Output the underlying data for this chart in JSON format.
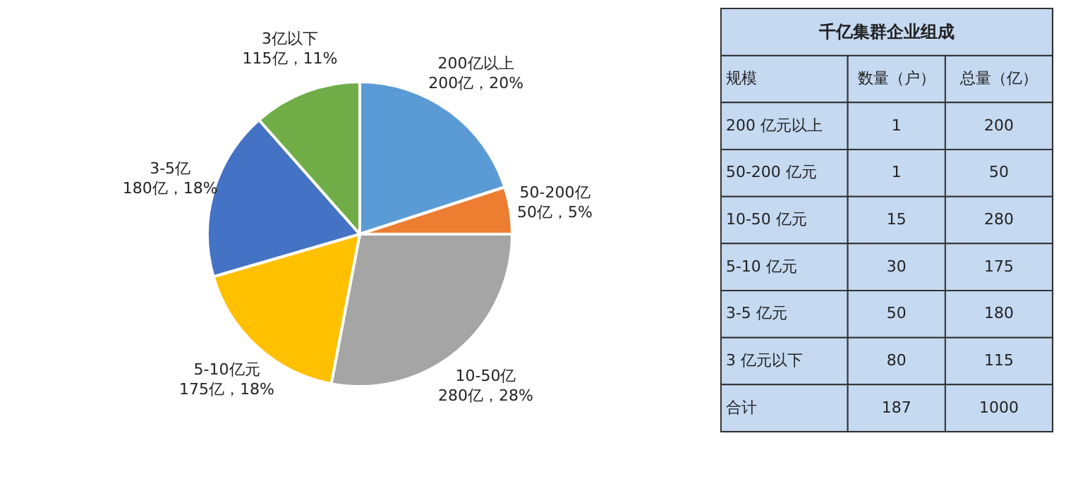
{
  "chart_data": [
    {
      "type": "pie",
      "categories": [
        "200亿以上",
        "50-200亿",
        "10-50亿",
        "5-10亿元",
        "3-5亿",
        "3亿以下"
      ],
      "value_labels": [
        "200亿，20%",
        "50亿，5%",
        "280亿，28%",
        "175亿，18%",
        "180亿，18%",
        "115亿，11%"
      ],
      "values": [
        200,
        50,
        280,
        175,
        180,
        115
      ],
      "colors": [
        "#5b9bd5",
        "#ed7d31",
        "#a5a5a5",
        "#ffc000",
        "#4472c4",
        "#70ad47"
      ],
      "data_labels": true,
      "legend": false
    },
    {
      "type": "other",
      "title": "千亿集群企业组成",
      "annotations": [
        "规模",
        "数量（户）",
        "总量（亿）",
        "200 亿元以上",
        "1",
        "200",
        "50-200 亿元",
        "1",
        "50",
        "10-50 亿元",
        "15",
        "280",
        "5-10 亿元",
        "30",
        "175",
        "3-5 亿元",
        "50",
        "180",
        "3 亿元以下",
        "80",
        "115",
        "合计",
        "187",
        "1000"
      ]
    }
  ]
}
